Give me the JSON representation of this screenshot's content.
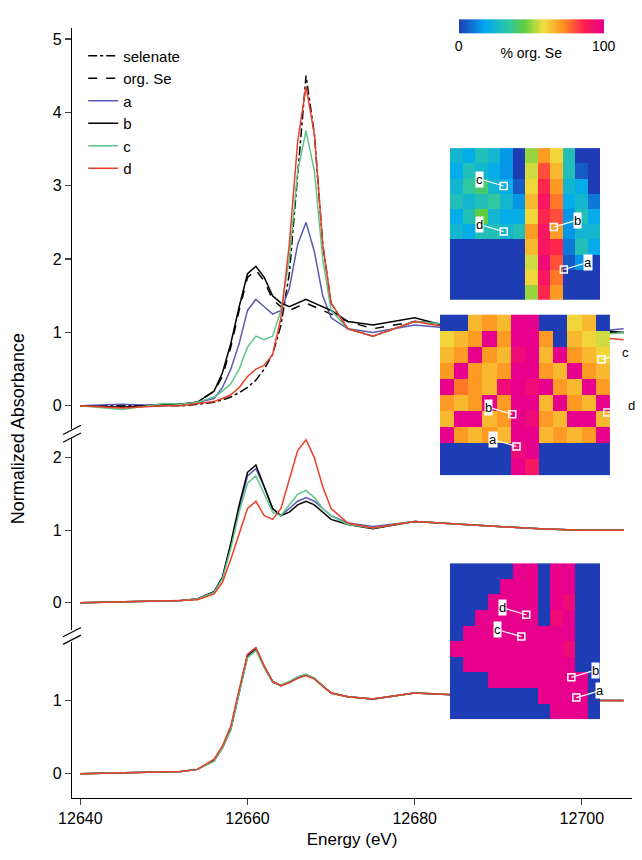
{
  "chart_data": {
    "type": "line",
    "x_label": "Energy (eV)",
    "y_label": "Normalized Absorbance",
    "legend": "top left",
    "xlim": [
      12639,
      12706
    ],
    "xticks": [
      12640,
      12660,
      12680,
      12700
    ],
    "x": [
      12640,
      12645,
      12650,
      12652,
      12654,
      12656,
      12657,
      12658,
      12659,
      12660,
      12661,
      12662,
      12663,
      12664,
      12665,
      12666,
      12667,
      12668,
      12669,
      12670,
      12672,
      12675,
      12680,
      12685,
      12690,
      12695,
      12700,
      12705
    ],
    "panels": [
      {
        "ylim": [
          -0.35,
          5.15
        ],
        "yticks": [
          0,
          1,
          2,
          3,
          4,
          5
        ],
        "series": [
          {
            "name": "selenate",
            "color": "#000000",
            "line_style": "dashdot",
            "values": [
              0,
              0,
              0,
              0,
              0.02,
              0.05,
              0.08,
              0.12,
              0.18,
              0.25,
              0.35,
              0.5,
              0.7,
              1.1,
              1.8,
              3.2,
              4.5,
              3.7,
              2.2,
              1.4,
              1.05,
              0.95,
              1.15,
              1.1,
              1.0,
              1.0,
              1.0,
              1.0
            ]
          },
          {
            "name": "org. Se",
            "color": "#000000",
            "line_style": "dash",
            "values": [
              0,
              0,
              0,
              0.02,
              0.05,
              0.2,
              0.4,
              0.8,
              1.3,
              1.75,
              1.85,
              1.7,
              1.45,
              1.35,
              1.3,
              1.35,
              1.4,
              1.35,
              1.3,
              1.25,
              1.15,
              1.05,
              1.15,
              1.1,
              1.05,
              1.0,
              1.0,
              1.0
            ]
          },
          {
            "name": "a",
            "color": "#5a5ab4",
            "line_style": "solid",
            "values": [
              0,
              0.02,
              0,
              0.03,
              0.05,
              0.1,
              0.25,
              0.5,
              0.85,
              1.3,
              1.45,
              1.35,
              1.25,
              1.3,
              1.6,
              2.2,
              2.5,
              2.1,
              1.5,
              1.2,
              1.05,
              1.0,
              1.1,
              1.05,
              1.05,
              0.95,
              1.0,
              1.05
            ]
          },
          {
            "name": "b",
            "color": "#000000",
            "line_style": "solid",
            "values": [
              0,
              -0.02,
              0.02,
              0.02,
              0.05,
              0.2,
              0.45,
              0.85,
              1.35,
              1.8,
              1.9,
              1.75,
              1.5,
              1.4,
              1.35,
              1.4,
              1.45,
              1.4,
              1.35,
              1.3,
              1.15,
              1.1,
              1.2,
              1.05,
              1.1,
              0.95,
              1.05,
              1.0
            ]
          },
          {
            "name": "c",
            "color": "#5fc48a",
            "line_style": "solid",
            "values": [
              0,
              -0.05,
              0.03,
              0.02,
              0.05,
              0.12,
              0.2,
              0.3,
              0.5,
              0.8,
              0.95,
              0.9,
              0.95,
              1.3,
              2.0,
              3.2,
              3.75,
              3.2,
              2.0,
              1.3,
              1.05,
              0.95,
              1.15,
              1.1,
              1.0,
              1.05,
              0.95,
              1.0
            ]
          },
          {
            "name": "d",
            "color": "#e8402a",
            "line_style": "solid",
            "values": [
              0,
              -0.03,
              0,
              0,
              0.03,
              0.06,
              0.1,
              0.15,
              0.25,
              0.4,
              0.5,
              0.55,
              0.7,
              1.2,
              2.2,
              3.6,
              4.35,
              3.7,
              2.2,
              1.4,
              1.05,
              0.95,
              1.15,
              1.05,
              1.0,
              1.0,
              0.95,
              0.9
            ]
          }
        ]
      },
      {
        "ylim": [
          -0.38,
          2.3
        ],
        "yticks": [
          0,
          1,
          2
        ],
        "series": [
          {
            "name": "a",
            "color": "#5a5ab4",
            "line_style": "solid",
            "values": [
              0,
              0.01,
              0.02,
              0.03,
              0.05,
              0.15,
              0.35,
              0.8,
              1.3,
              1.75,
              1.85,
              1.6,
              1.3,
              1.2,
              1.3,
              1.4,
              1.45,
              1.4,
              1.3,
              1.2,
              1.1,
              1.05,
              1.12,
              1.08,
              1.05,
              1.02,
              1.0,
              1.0
            ]
          },
          {
            "name": "b",
            "color": "#000000",
            "line_style": "solid",
            "values": [
              0,
              0.01,
              0.02,
              0.03,
              0.05,
              0.15,
              0.35,
              0.82,
              1.35,
              1.8,
              1.9,
              1.6,
              1.3,
              1.2,
              1.25,
              1.35,
              1.4,
              1.35,
              1.25,
              1.15,
              1.08,
              1.02,
              1.12,
              1.08,
              1.05,
              1.02,
              1.0,
              1.0
            ]
          },
          {
            "name": "c",
            "color": "#5fc48a",
            "line_style": "solid",
            "values": [
              0,
              0.01,
              0.02,
              0.03,
              0.05,
              0.14,
              0.33,
              0.75,
              1.25,
              1.65,
              1.75,
              1.5,
              1.25,
              1.2,
              1.35,
              1.5,
              1.55,
              1.45,
              1.3,
              1.2,
              1.08,
              1.03,
              1.12,
              1.08,
              1.05,
              1.02,
              1.0,
              1.0
            ]
          },
          {
            "name": "d",
            "color": "#e8402a",
            "line_style": "solid",
            "values": [
              0,
              0.01,
              0.02,
              0.03,
              0.04,
              0.12,
              0.28,
              0.6,
              0.95,
              1.3,
              1.4,
              1.2,
              1.15,
              1.3,
              1.7,
              2.1,
              2.25,
              2.0,
              1.6,
              1.3,
              1.1,
              1.03,
              1.12,
              1.08,
              1.05,
              1.02,
              1.0,
              1.0
            ]
          }
        ]
      },
      {
        "ylim": [
          -0.33,
          1.8
        ],
        "yticks": [
          0,
          1
        ],
        "series": [
          {
            "name": "a",
            "color": "#5a5ab4",
            "line_style": "solid",
            "values": [
              0,
              0.01,
              0.02,
              0.03,
              0.06,
              0.18,
              0.35,
              0.6,
              1.1,
              1.6,
              1.7,
              1.45,
              1.25,
              1.2,
              1.25,
              1.32,
              1.35,
              1.3,
              1.2,
              1.1,
              1.05,
              1.02,
              1.1,
              1.08,
              1.05,
              1.02,
              1.0,
              1.0
            ]
          },
          {
            "name": "b",
            "color": "#000000",
            "line_style": "solid",
            "values": [
              0,
              0.01,
              0.02,
              0.03,
              0.06,
              0.18,
              0.36,
              0.62,
              1.12,
              1.62,
              1.71,
              1.46,
              1.26,
              1.2,
              1.25,
              1.31,
              1.35,
              1.3,
              1.2,
              1.1,
              1.05,
              1.02,
              1.1,
              1.07,
              1.05,
              1.02,
              1.0,
              1.0
            ]
          },
          {
            "name": "c",
            "color": "#5fc48a",
            "line_style": "solid",
            "values": [
              0,
              0.01,
              0.02,
              0.03,
              0.06,
              0.17,
              0.35,
              0.6,
              1.1,
              1.58,
              1.68,
              1.45,
              1.25,
              1.21,
              1.26,
              1.32,
              1.36,
              1.3,
              1.2,
              1.1,
              1.05,
              1.02,
              1.1,
              1.08,
              1.04,
              1.02,
              1.0,
              1.0
            ]
          },
          {
            "name": "d",
            "color": "#e8402a",
            "line_style": "solid",
            "values": [
              0,
              0.01,
              0.02,
              0.03,
              0.06,
              0.2,
              0.38,
              0.65,
              1.15,
              1.63,
              1.72,
              1.47,
              1.26,
              1.2,
              1.24,
              1.3,
              1.34,
              1.29,
              1.19,
              1.1,
              1.05,
              1.02,
              1.1,
              1.08,
              1.05,
              1.02,
              1.0,
              1.0
            ]
          }
        ]
      }
    ],
    "colorbar": {
      "label": "% org. Se",
      "range": [
        0,
        100
      ],
      "ticks": [
        0,
        100
      ]
    },
    "insets": [
      {
        "cells": [
          [
            25,
            20,
            30,
            25,
            15,
            0,
            50,
            70,
            60,
            30,
            0,
            0
          ],
          [
            20,
            30,
            25,
            20,
            15,
            0,
            55,
            80,
            65,
            30,
            5,
            0
          ],
          [
            25,
            35,
            40,
            25,
            20,
            5,
            60,
            85,
            70,
            25,
            20,
            0
          ],
          [
            30,
            25,
            30,
            35,
            25,
            15,
            65,
            90,
            75,
            20,
            25,
            10
          ],
          [
            20,
            30,
            45,
            25,
            20,
            20,
            60,
            85,
            80,
            15,
            30,
            20
          ],
          [
            25,
            20,
            30,
            30,
            25,
            30,
            70,
            90,
            70,
            15,
            25,
            25
          ],
          [
            0,
            0,
            0,
            0,
            0,
            0,
            65,
            90,
            85,
            10,
            30,
            20
          ],
          [
            0,
            0,
            0,
            0,
            0,
            0,
            55,
            95,
            80,
            5,
            15,
            0
          ],
          [
            0,
            0,
            0,
            0,
            0,
            0,
            60,
            90,
            75,
            0,
            0,
            0
          ],
          [
            0,
            0,
            0,
            0,
            0,
            0,
            50,
            85,
            70,
            0,
            0,
            0
          ]
        ],
        "points": [
          {
            "label": "c",
            "col": 3.8,
            "row": 2
          },
          {
            "label": "d",
            "col": 3.8,
            "row": 5
          },
          {
            "label": "b",
            "col": 7.8,
            "row": 4.7
          },
          {
            "label": "a",
            "col": 8.6,
            "row": 7.5
          }
        ]
      },
      {
        "cells": [
          [
            0,
            0,
            65,
            70,
            65,
            100,
            100,
            0,
            0,
            60,
            65,
            0
          ],
          [
            60,
            65,
            70,
            100,
            70,
            100,
            100,
            70,
            0,
            65,
            60,
            55
          ],
          [
            65,
            70,
            100,
            70,
            65,
            95,
            100,
            65,
            100,
            70,
            65,
            60
          ],
          [
            70,
            100,
            70,
            65,
            70,
            100,
            100,
            70,
            65,
            100,
            70,
            65
          ],
          [
            100,
            75,
            70,
            65,
            95,
            100,
            95,
            100,
            70,
            65,
            100,
            70
          ],
          [
            70,
            65,
            70,
            100,
            70,
            100,
            100,
            65,
            100,
            70,
            65,
            100
          ],
          [
            65,
            100,
            100,
            65,
            70,
            100,
            95,
            70,
            65,
            100,
            100,
            65
          ],
          [
            100,
            70,
            65,
            70,
            65,
            100,
            100,
            65,
            70,
            65,
            70,
            100
          ],
          [
            0,
            0,
            0,
            0,
            0,
            95,
            100,
            0,
            0,
            0,
            0,
            0
          ],
          [
            0,
            0,
            0,
            0,
            0,
            100,
            90,
            0,
            0,
            0,
            0,
            0
          ]
        ],
        "points": [
          {
            "label": "c",
            "col": 10.9,
            "row": 2.3
          },
          {
            "label": "b",
            "col": 4.6,
            "row": 5.7
          },
          {
            "label": "a",
            "col": 4.9,
            "row": 7.7
          },
          {
            "label": "d",
            "col": 11.3,
            "row": 5.6
          }
        ]
      },
      {
        "cells": [
          [
            0,
            0,
            0,
            0,
            0,
            100,
            100,
            0,
            100,
            100,
            0,
            0
          ],
          [
            0,
            0,
            0,
            0,
            100,
            100,
            100,
            0,
            100,
            100,
            0,
            0
          ],
          [
            0,
            0,
            0,
            100,
            100,
            100,
            100,
            0,
            100,
            95,
            0,
            0
          ],
          [
            0,
            0,
            100,
            100,
            100,
            100,
            100,
            0,
            95,
            100,
            0,
            0
          ],
          [
            0,
            100,
            100,
            100,
            100,
            100,
            100,
            100,
            100,
            100,
            0,
            0
          ],
          [
            100,
            100,
            100,
            100,
            100,
            100,
            100,
            100,
            100,
            95,
            0,
            0
          ],
          [
            0,
            100,
            100,
            100,
            100,
            100,
            100,
            100,
            100,
            100,
            0,
            0
          ],
          [
            0,
            0,
            0,
            100,
            100,
            100,
            100,
            100,
            100,
            100,
            100,
            0
          ],
          [
            0,
            0,
            0,
            0,
            0,
            0,
            0,
            100,
            100,
            100,
            100,
            0
          ],
          [
            0,
            0,
            0,
            0,
            0,
            0,
            0,
            0,
            100,
            100,
            100,
            0
          ]
        ],
        "points": [
          {
            "label": "d",
            "col": 5.6,
            "row": 2.8
          },
          {
            "label": "c",
            "col": 5.2,
            "row": 4.2
          },
          {
            "label": "b",
            "col": 9.2,
            "row": 6.8
          },
          {
            "label": "a",
            "col": 9.6,
            "row": 8.1
          }
        ]
      }
    ]
  }
}
